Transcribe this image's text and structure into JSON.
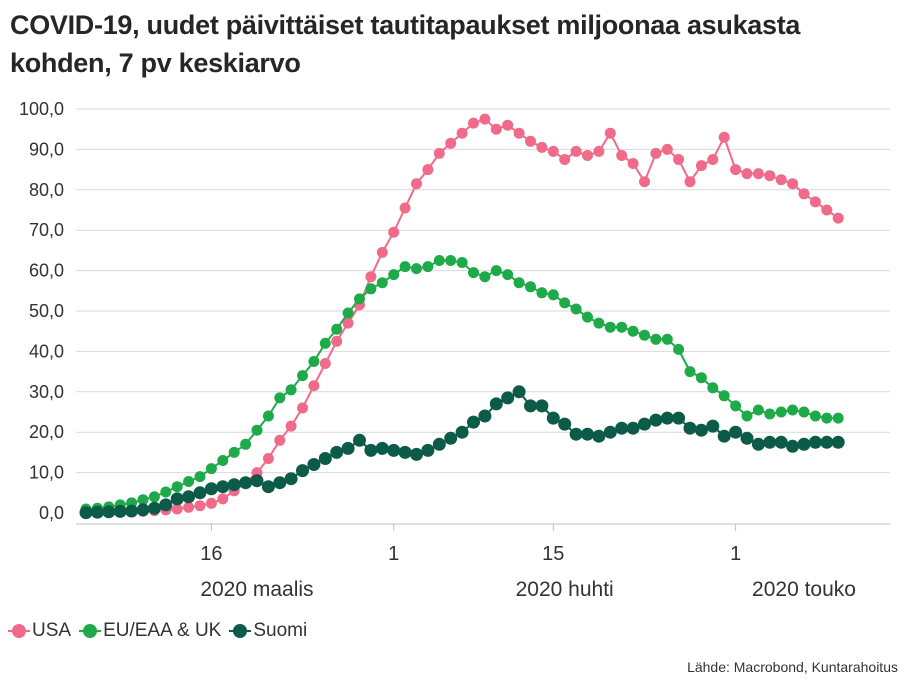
{
  "title": "COVID-19, uudet päivittäiset tautitapaukset miljoonaa asukasta kohden, 7 pv keskiarvo",
  "source": "Lähde: Macrobond, Kuntarahoitus",
  "chart_data": {
    "type": "line",
    "title": "COVID-19, uudet päivittäiset tautitapaukset miljoonaa asukasta kohden, 7 pv keskiarvo",
    "x_start": "2020-03-05",
    "x_end": "2020-05-12",
    "ylim": [
      0,
      100
    ],
    "yticks": [
      0,
      10,
      20,
      30,
      40,
      50,
      60,
      70,
      80,
      90,
      100
    ],
    "ytick_labels": [
      "0,0",
      "10,0",
      "20,0",
      "30,0",
      "40,0",
      "50,0",
      "60,0",
      "70,0",
      "80,0",
      "90,0",
      "100,0"
    ],
    "xticks": [
      {
        "date": "2020-03-16",
        "label": "16"
      },
      {
        "date": "2020-04-01",
        "label": "1"
      },
      {
        "date": "2020-04-15",
        "label": "15"
      },
      {
        "date": "2020-05-01",
        "label": "1"
      }
    ],
    "xgroups": [
      {
        "label": "2020 maalis",
        "date": "2020-03-20"
      },
      {
        "label": "2020 huhti",
        "date": "2020-04-16"
      },
      {
        "label": "2020 touko",
        "date": "2020-05-07"
      }
    ],
    "grid": true,
    "legend_position": "bottom-left",
    "series": [
      {
        "name": "USA",
        "color": "#f06b8a",
        "values": [
          0.1,
          0.1,
          0.2,
          0.3,
          0.3,
          0.4,
          0.6,
          0.8,
          1.0,
          1.4,
          1.8,
          2.4,
          3.5,
          5.5,
          7.5,
          10.0,
          13.5,
          18.0,
          21.5,
          26.0,
          31.5,
          37.0,
          42.5,
          47.0,
          51.5,
          58.5,
          64.5,
          69.5,
          75.5,
          81.5,
          85.0,
          89.0,
          91.5,
          94.0,
          96.5,
          97.5,
          95.0,
          96.0,
          94.0,
          92.0,
          90.5,
          89.5,
          87.5,
          89.5,
          88.5,
          89.5,
          94.0,
          88.5,
          86.5,
          82.0,
          89.0,
          90.0,
          87.5,
          82.0,
          86.0,
          87.5,
          93.0,
          85.0,
          84.0,
          84.0,
          83.5,
          82.5,
          81.5,
          79.0,
          77.0,
          75.0,
          73.0
        ]
      },
      {
        "name": "EU/EAA & UK",
        "color": "#1faa4a",
        "values": [
          1.0,
          1.2,
          1.5,
          2.0,
          2.5,
          3.3,
          4.0,
          5.2,
          6.5,
          7.8,
          9.0,
          11.0,
          13.0,
          15.0,
          17.0,
          20.5,
          24.0,
          28.5,
          30.5,
          34.0,
          37.5,
          42.0,
          45.5,
          49.5,
          53.0,
          55.5,
          57.0,
          59.0,
          61.0,
          60.5,
          61.0,
          62.5,
          62.5,
          62.0,
          59.5,
          58.5,
          60.0,
          59.0,
          57.0,
          56.0,
          54.5,
          54.0,
          52.0,
          50.5,
          48.5,
          47.0,
          46.0,
          46.0,
          45.0,
          44.0,
          43.0,
          43.0,
          40.5,
          35.0,
          33.5,
          31.0,
          29.0,
          26.5,
          24.0,
          25.5,
          24.5,
          25.0,
          25.5,
          25.0,
          24.0,
          23.5,
          23.5
        ]
      },
      {
        "name": "Suomi",
        "color": "#0c5a48",
        "values": [
          0.1,
          0.2,
          0.3,
          0.4,
          0.5,
          0.8,
          1.2,
          2.0,
          3.5,
          4.0,
          5.0,
          6.0,
          6.5,
          7.0,
          7.5,
          8.0,
          6.5,
          7.5,
          8.5,
          10.5,
          12.0,
          13.5,
          15.0,
          16.0,
          18.0,
          15.5,
          16.0,
          15.5,
          15.0,
          14.5,
          15.5,
          17.0,
          18.5,
          20.0,
          22.5,
          24.0,
          27.0,
          28.5,
          30.0,
          26.5,
          26.5,
          23.5,
          22.0,
          19.5,
          19.5,
          19.0,
          20.0,
          21.0,
          21.0,
          22.0,
          23.0,
          23.5,
          23.5,
          21.0,
          20.5,
          21.5,
          19.0,
          20.0,
          18.5,
          17.0,
          17.5,
          17.5,
          16.5,
          17.0,
          17.5,
          17.5,
          17.5
        ]
      }
    ]
  }
}
